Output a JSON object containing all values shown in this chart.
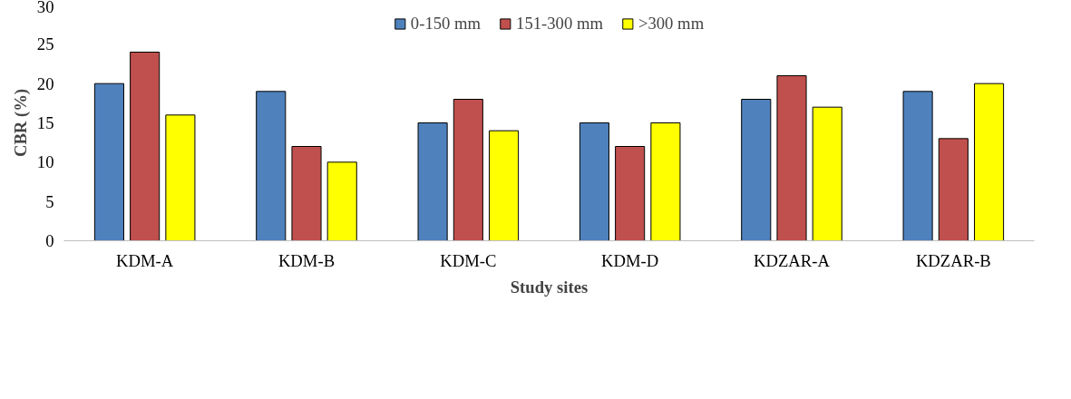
{
  "chart_data": {
    "type": "bar",
    "xlabel": "Study sites",
    "ylabel": "CBR (%)",
    "categories": [
      "KDM-A",
      "KDM-B",
      "KDM-C",
      "KDM-D",
      "KDZAR-A",
      "KDZAR-B"
    ],
    "series": [
      {
        "name": "0-150 mm",
        "color": "#4f81bd",
        "values": [
          20,
          19,
          15,
          15,
          18,
          19
        ]
      },
      {
        "name": "151-300 mm",
        "color": "#c0504d",
        "values": [
          24,
          12,
          18,
          12,
          21,
          13
        ]
      },
      {
        "name": ">300 mm",
        "color": "#ffff00",
        "values": [
          16,
          10,
          14,
          15,
          17,
          20
        ]
      }
    ],
    "ylim": [
      0,
      30
    ],
    "yticks": [
      0,
      5,
      10,
      15,
      20,
      25,
      30
    ],
    "grid": false,
    "legend": "top"
  }
}
